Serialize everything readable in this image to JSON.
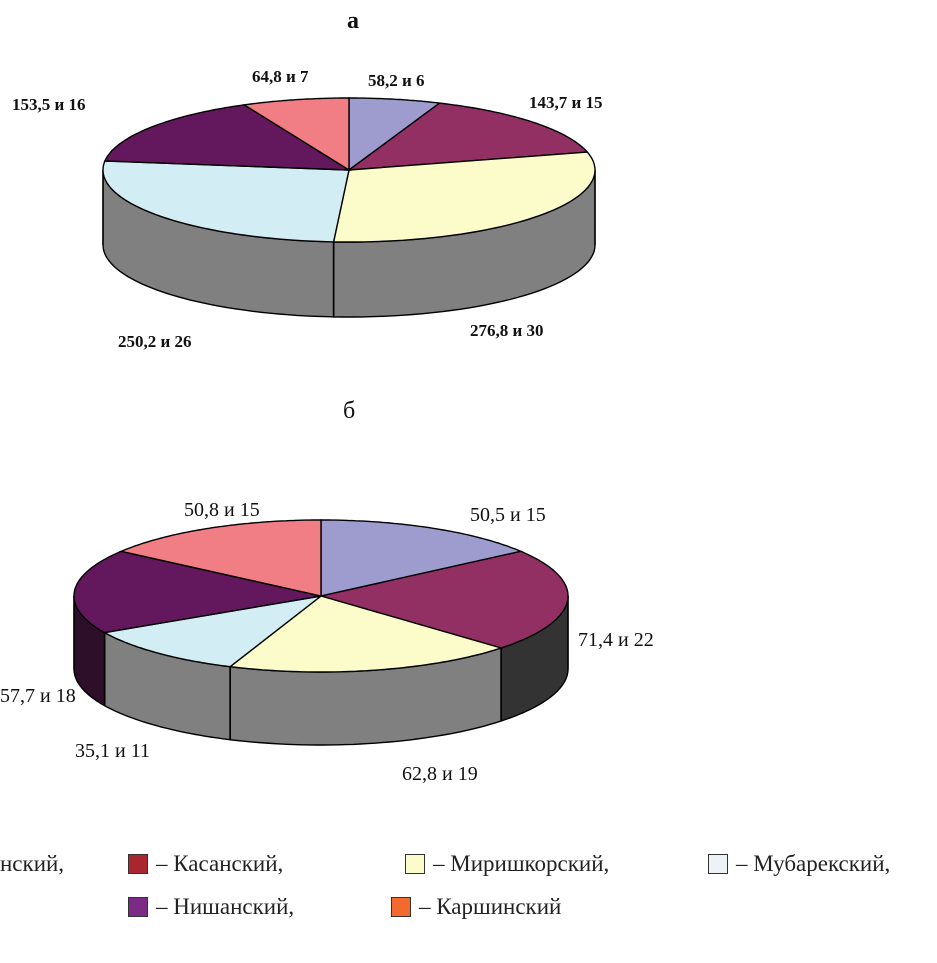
{
  "chart_data": [
    {
      "type": "pie",
      "title": "а",
      "slices": [
        {
          "label": "58,2 и 6",
          "value": 58.2,
          "percent": 6,
          "color": "#9e9bcf"
        },
        {
          "label": "143,7 и 15",
          "value": 143.7,
          "percent": 15,
          "color": "#933063"
        },
        {
          "label": "276,8 и 30",
          "value": 276.8,
          "percent": 30,
          "color": "#fcfccb"
        },
        {
          "label": "250,2 и 26",
          "value": 250.2,
          "percent": 26,
          "color": "#d3edf5"
        },
        {
          "label": "153,5 и 16",
          "value": 153.5,
          "percent": 16,
          "color": "#63185e"
        },
        {
          "label": "64,8 и 7",
          "value": 64.8,
          "percent": 7,
          "color": "#f27e85"
        }
      ],
      "side_color": "#808080"
    },
    {
      "type": "pie",
      "title": "б",
      "slices": [
        {
          "label": "50,5 и 15",
          "value": 50.5,
          "percent": 15,
          "color": "#9e9bcf"
        },
        {
          "label": "71,4 и 22",
          "value": 71.4,
          "percent": 22,
          "color": "#933063"
        },
        {
          "label": "62,8 и 19",
          "value": 62.8,
          "percent": 19,
          "color": "#fcfccb"
        },
        {
          "label": "35,1 и 11",
          "value": 35.1,
          "percent": 11,
          "color": "#d3edf5"
        },
        {
          "label": "57,7 и 18",
          "value": 57.7,
          "percent": 18,
          "color": "#63185e"
        },
        {
          "label": "50,8 и 15",
          "value": 50.8,
          "percent": 15,
          "color": "#f27e85"
        }
      ],
      "side_color": "#808080",
      "side_dark_color": "#333333",
      "side_purple_color": "#2e0f2a"
    }
  ],
  "legend": {
    "row1": [
      {
        "text": "нский,",
        "color": null
      },
      {
        "text": "– Касанский,",
        "color": "#a8262c"
      },
      {
        "text": "– Миришкорский,",
        "color": "#fcfccb"
      },
      {
        "text": "– Мубарекский,",
        "color": "#eef2f7"
      }
    ],
    "row2": [
      {
        "text": "– Нишанский,",
        "color": "#7b2a86"
      },
      {
        "text": "– Каршинский",
        "color": "#f26a2e"
      }
    ]
  }
}
